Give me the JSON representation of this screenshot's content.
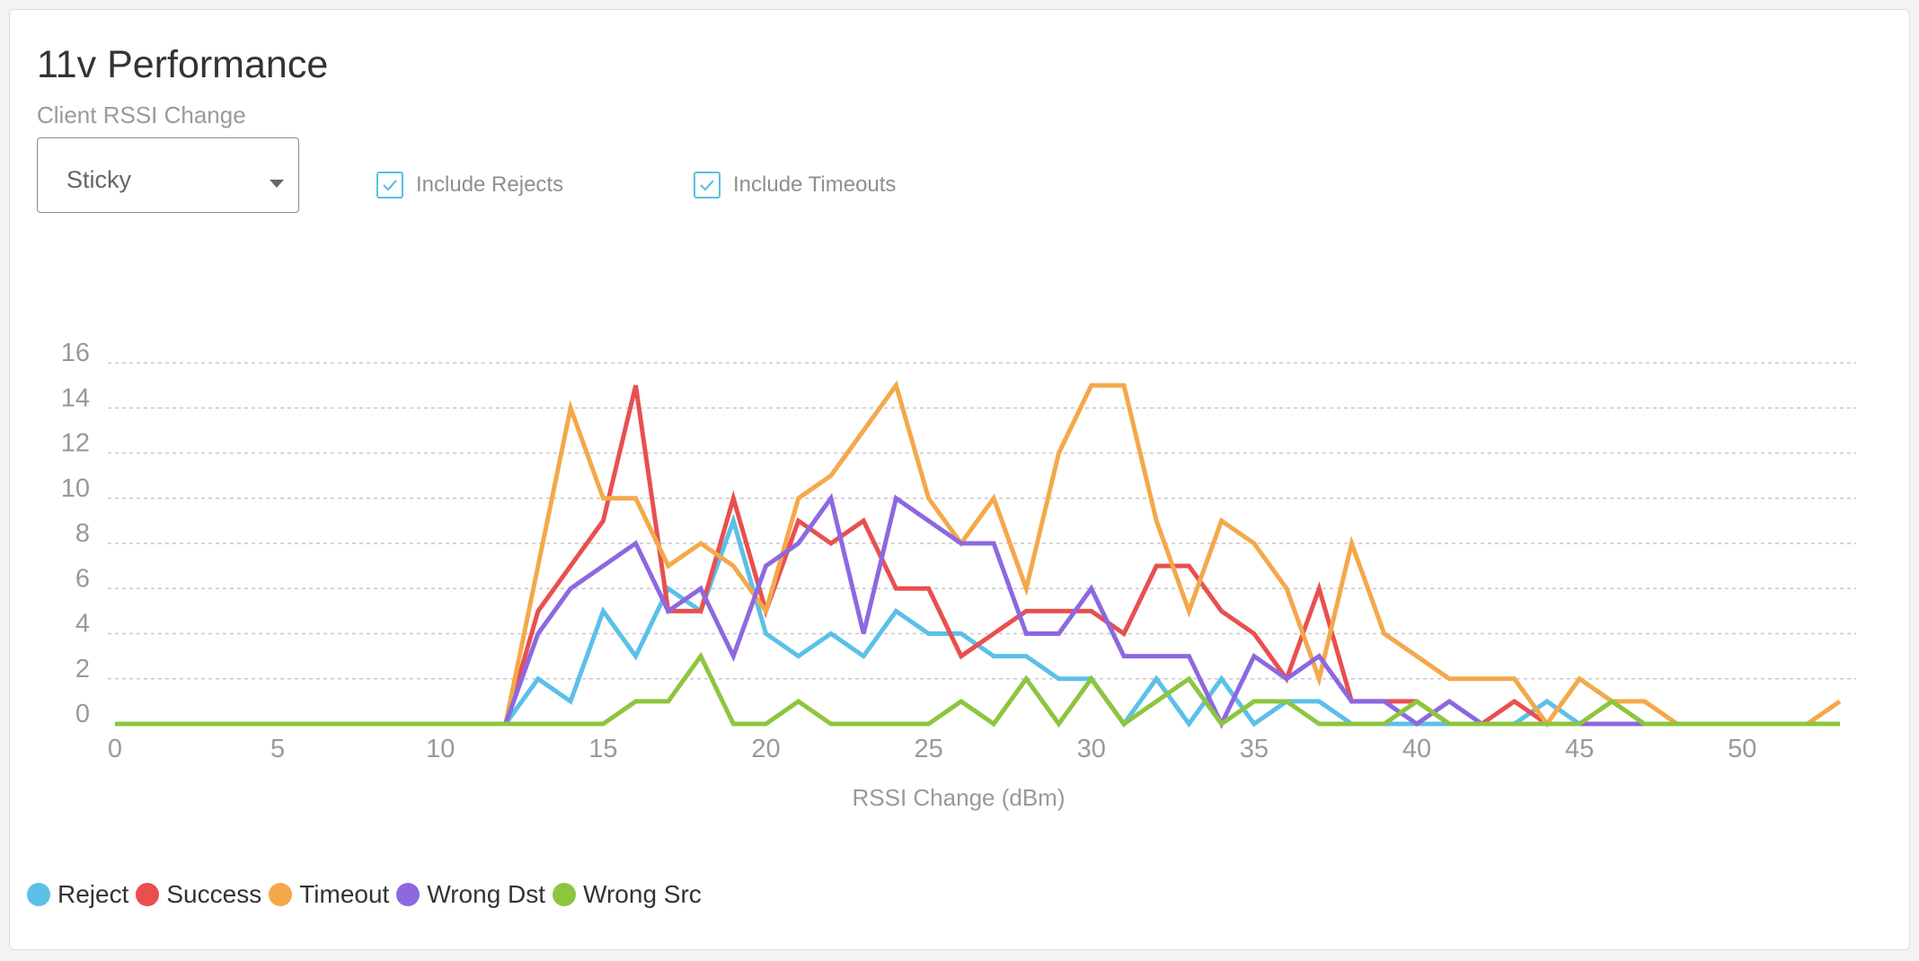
{
  "header": {
    "title": "11v Performance",
    "subtitle": "Client RSSI Change"
  },
  "controls": {
    "dropdown_value": "Sticky",
    "include_rejects_label": "Include Rejects",
    "include_rejects_checked": true,
    "include_timeouts_label": "Include Timeouts",
    "include_timeouts_checked": true,
    "accent_color": "#5bc0de"
  },
  "chart_data": {
    "type": "line",
    "xlabel": "RSSI Change (dBm)",
    "ylabel": "",
    "xlim": [
      0,
      53.5
    ],
    "ylim": [
      0,
      16
    ],
    "x_ticks": [
      0,
      5,
      10,
      15,
      20,
      25,
      30,
      35,
      40,
      45,
      50
    ],
    "y_ticks": [
      0,
      2,
      4,
      6,
      8,
      10,
      12,
      14,
      16
    ],
    "grid": "horizontal-dashed",
    "legend_position": "bottom-left",
    "x": [
      0,
      1,
      2,
      3,
      4,
      5,
      6,
      7,
      8,
      9,
      10,
      11,
      12,
      13,
      14,
      15,
      16,
      17,
      18,
      19,
      20,
      21,
      22,
      23,
      24,
      25,
      26,
      27,
      28,
      29,
      30,
      31,
      32,
      33,
      34,
      35,
      36,
      37,
      38,
      39,
      40,
      41,
      42,
      43,
      44,
      45,
      46,
      47,
      48,
      49,
      50,
      51,
      52,
      53
    ],
    "series": [
      {
        "name": "Reject",
        "color": "#5bc0e8",
        "values": [
          0,
          0,
          0,
          0,
          0,
          0,
          0,
          0,
          0,
          0,
          0,
          0,
          0,
          2,
          1,
          5,
          3,
          6,
          5,
          9,
          4,
          3,
          4,
          3,
          5,
          4,
          4,
          3,
          3,
          2,
          2,
          0,
          2,
          0,
          2,
          0,
          1,
          1,
          0,
          0,
          0,
          0,
          0,
          0,
          1,
          0,
          0,
          0,
          0,
          0,
          0,
          0,
          0,
          0
        ]
      },
      {
        "name": "Success",
        "color": "#e8504f",
        "values": [
          0,
          0,
          0,
          0,
          0,
          0,
          0,
          0,
          0,
          0,
          0,
          0,
          0,
          5,
          7,
          9,
          15,
          5,
          5,
          10,
          5,
          9,
          8,
          9,
          6,
          6,
          3,
          4,
          5,
          5,
          5,
          4,
          7,
          7,
          5,
          4,
          2,
          6,
          1,
          1,
          1,
          0,
          0,
          1,
          0,
          0,
          0,
          0,
          0,
          0,
          0,
          0,
          0,
          0
        ]
      },
      {
        "name": "Timeout",
        "color": "#f4a84a",
        "values": [
          0,
          0,
          0,
          0,
          0,
          0,
          0,
          0,
          0,
          0,
          0,
          0,
          0,
          7,
          14,
          10,
          10,
          7,
          8,
          7,
          5,
          10,
          11,
          13,
          15,
          10,
          8,
          10,
          6,
          12,
          15,
          15,
          9,
          5,
          9,
          8,
          6,
          2,
          8,
          4,
          3,
          2,
          2,
          2,
          0,
          2,
          1,
          1,
          0,
          0,
          0,
          0,
          0,
          1
        ]
      },
      {
        "name": "Wrong Dst",
        "color": "#8d68e0",
        "values": [
          0,
          0,
          0,
          0,
          0,
          0,
          0,
          0,
          0,
          0,
          0,
          0,
          0,
          4,
          6,
          7,
          8,
          5,
          6,
          3,
          7,
          8,
          10,
          4,
          10,
          9,
          8,
          8,
          4,
          4,
          6,
          3,
          3,
          3,
          0,
          3,
          2,
          3,
          1,
          1,
          0,
          1,
          0,
          0,
          0,
          0,
          0,
          0,
          0,
          0,
          0,
          0,
          0,
          0
        ]
      },
      {
        "name": "Wrong Src",
        "color": "#8cc63f",
        "values": [
          0,
          0,
          0,
          0,
          0,
          0,
          0,
          0,
          0,
          0,
          0,
          0,
          0,
          0,
          0,
          0,
          1,
          1,
          3,
          0,
          0,
          1,
          0,
          0,
          0,
          0,
          1,
          0,
          2,
          0,
          2,
          0,
          1,
          2,
          0,
          1,
          1,
          0,
          0,
          0,
          1,
          0,
          0,
          0,
          0,
          0,
          1,
          0,
          0,
          0,
          0,
          0,
          0,
          0
        ]
      }
    ]
  }
}
